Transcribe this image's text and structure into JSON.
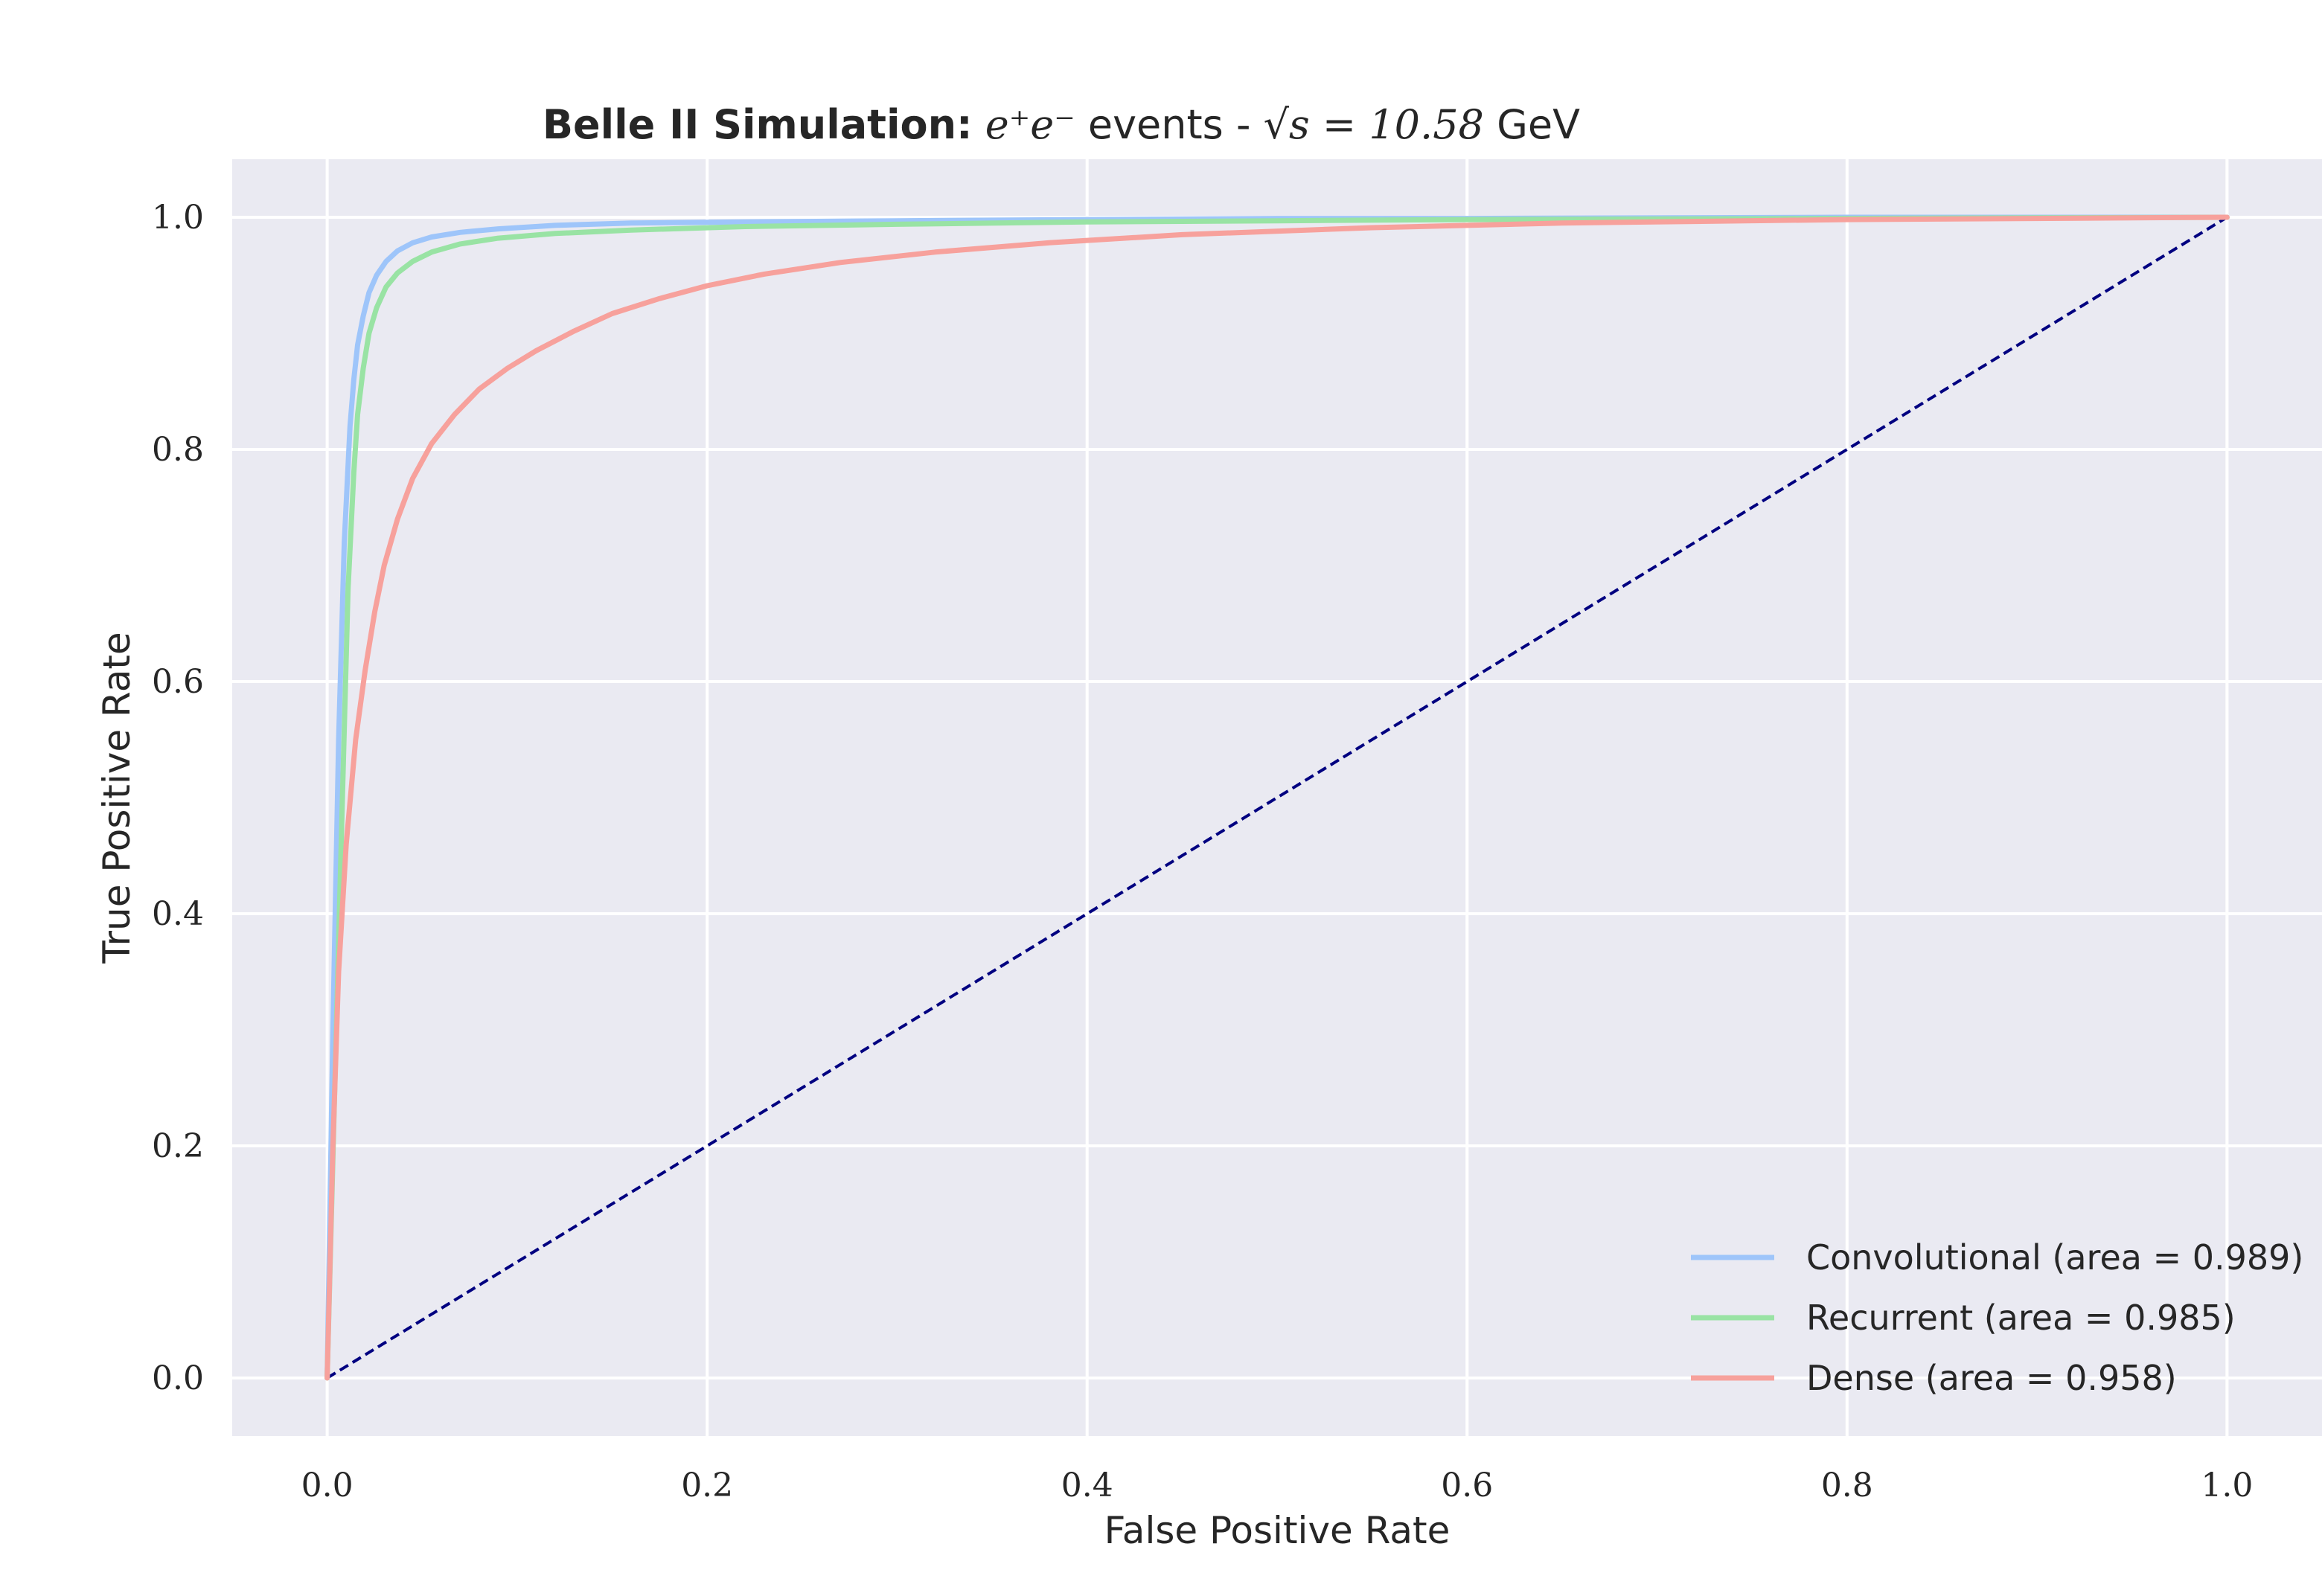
{
  "chart_data": {
    "type": "line",
    "title": {
      "bold": "Belle II Simulation:",
      "math": "e⁺e⁻",
      "mid": " events - ",
      "math2": "√s = 10.58",
      "unit": " GeV"
    },
    "xlabel": "False Positive Rate",
    "ylabel": "True Positive Rate",
    "xlim": [
      -0.05,
      1.05
    ],
    "ylim": [
      -0.05,
      1.05
    ],
    "xticks": [
      0.0,
      0.2,
      0.4,
      0.6,
      0.8,
      1.0
    ],
    "yticks": [
      0.0,
      0.2,
      0.4,
      0.6,
      0.8,
      1.0
    ],
    "xtick_labels": [
      "0.0",
      "0.2",
      "0.4",
      "0.6",
      "0.8",
      "1.0"
    ],
    "ytick_labels": [
      "0.0",
      "0.2",
      "0.4",
      "0.6",
      "0.8",
      "1.0"
    ],
    "grid": true,
    "legend_position": "bottom-right",
    "background_color": "#eaeaf2",
    "series": [
      {
        "name": "Convolutional (area = 0.989)",
        "color": "#9ec5fa",
        "x": [
          0.0,
          0.003,
          0.006,
          0.009,
          0.012,
          0.014,
          0.016,
          0.019,
          0.022,
          0.026,
          0.031,
          0.037,
          0.045,
          0.055,
          0.07,
          0.09,
          0.12,
          0.16,
          0.22,
          0.3,
          0.4,
          0.5,
          0.6,
          0.8,
          1.0
        ],
        "y": [
          0.0,
          0.3,
          0.55,
          0.72,
          0.82,
          0.86,
          0.89,
          0.915,
          0.935,
          0.95,
          0.962,
          0.971,
          0.978,
          0.983,
          0.987,
          0.99,
          0.993,
          0.995,
          0.996,
          0.997,
          0.998,
          0.999,
          0.999,
          1.0,
          1.0
        ]
      },
      {
        "name": "Recurrent (area = 0.985)",
        "color": "#99e3a4",
        "x": [
          0.0,
          0.004,
          0.008,
          0.011,
          0.014,
          0.016,
          0.019,
          0.022,
          0.026,
          0.031,
          0.037,
          0.045,
          0.055,
          0.07,
          0.09,
          0.12,
          0.16,
          0.22,
          0.3,
          0.4,
          0.5,
          0.6,
          0.8,
          1.0
        ],
        "y": [
          0.0,
          0.25,
          0.5,
          0.68,
          0.78,
          0.83,
          0.87,
          0.9,
          0.922,
          0.94,
          0.952,
          0.962,
          0.97,
          0.977,
          0.982,
          0.986,
          0.989,
          0.992,
          0.994,
          0.996,
          0.997,
          0.998,
          0.999,
          1.0
        ]
      },
      {
        "name": "Dense (area = 0.958)",
        "color": "#f7a19c",
        "x": [
          0.0,
          0.003,
          0.006,
          0.01,
          0.015,
          0.02,
          0.025,
          0.03,
          0.037,
          0.045,
          0.055,
          0.067,
          0.08,
          0.095,
          0.11,
          0.13,
          0.15,
          0.175,
          0.2,
          0.23,
          0.27,
          0.32,
          0.38,
          0.45,
          0.55,
          0.65,
          0.8,
          1.0
        ],
        "y": [
          0.0,
          0.2,
          0.35,
          0.46,
          0.55,
          0.61,
          0.66,
          0.7,
          0.74,
          0.775,
          0.805,
          0.83,
          0.852,
          0.87,
          0.885,
          0.902,
          0.917,
          0.93,
          0.941,
          0.951,
          0.961,
          0.97,
          0.978,
          0.985,
          0.991,
          0.995,
          0.998,
          1.0
        ]
      }
    ],
    "reference_line": {
      "x": [
        0.0,
        1.0
      ],
      "y": [
        0.0,
        1.0
      ],
      "color": "#000080",
      "style": "dashed"
    }
  }
}
